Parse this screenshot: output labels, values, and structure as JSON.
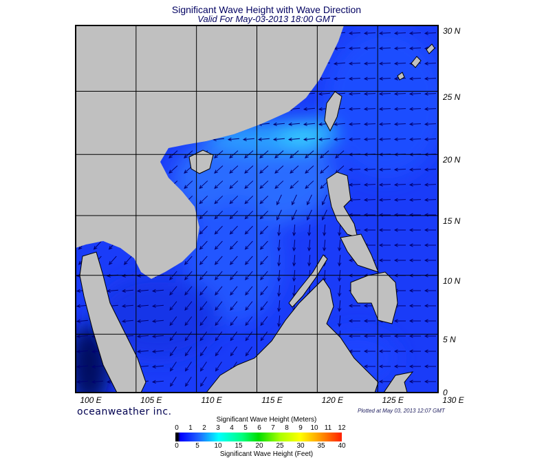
{
  "title": "Significant Wave Height with Wave Direction",
  "subtitle": "Valid For May-03-2013 18:00 GMT",
  "map": {
    "region": "South China Sea / Western Pacific",
    "lon_range": [
      100,
      130
    ],
    "lat_range": [
      0,
      30
    ],
    "projection": "mercator",
    "grid": true,
    "lon_labels": [
      "100 E",
      "105 E",
      "110 E",
      "115 E",
      "120 E",
      "125 E",
      "130 E"
    ],
    "lat_labels": [
      "0",
      "5 N",
      "10 N",
      "15 N",
      "20 N",
      "25 N",
      "30 N"
    ],
    "land_color": "#c0c0c0",
    "arrow_color": "#000070"
  },
  "brand": "oceanweather inc.",
  "plotted": "Plotted at May 03, 2013 12:07 GMT",
  "colorbar": {
    "title_meters": "Significant Wave Height (Meters)",
    "title_feet": "Significant Wave Height (Feet)",
    "meters_ticks": [
      "0",
      "1",
      "2",
      "3",
      "4",
      "5",
      "6",
      "7",
      "8",
      "9",
      "10",
      "11",
      "12"
    ],
    "feet_ticks": [
      "0",
      "5",
      "10",
      "15",
      "20",
      "25",
      "30",
      "35",
      "40"
    ],
    "colors": [
      "#000000",
      "#0000ff",
      "#00ffff",
      "#00dd00",
      "#ffff00",
      "#ff2000"
    ]
  }
}
